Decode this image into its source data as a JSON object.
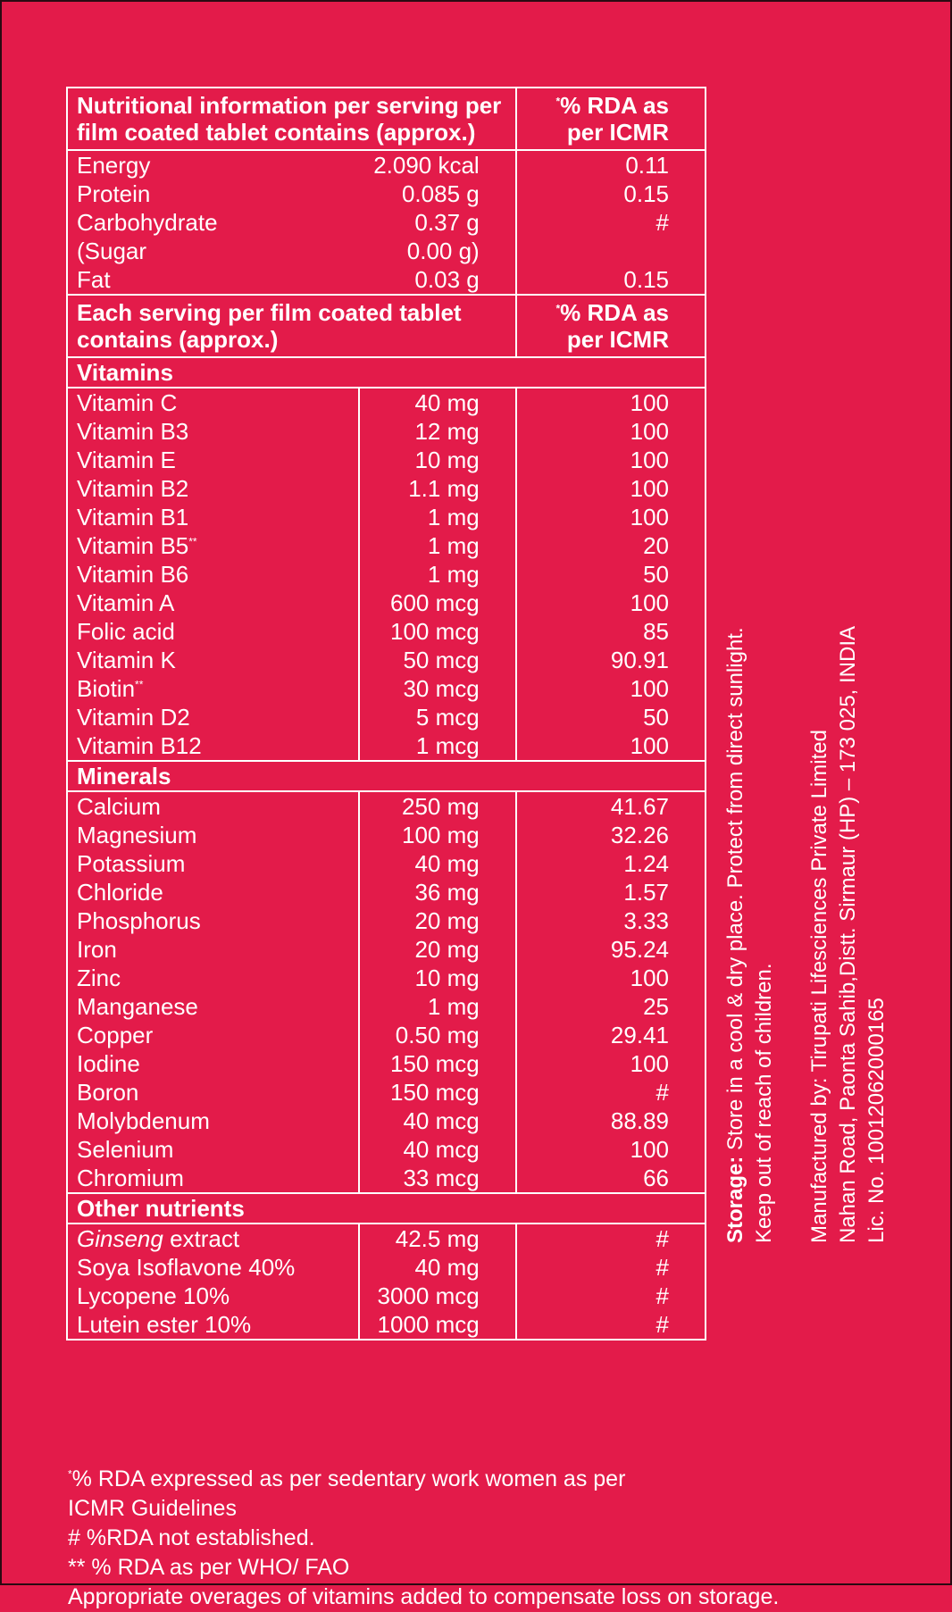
{
  "header1": {
    "left": "Nutritional information per serving per film coated tablet contains (approx.)",
    "right": "% RDA as per ICMR",
    "star": "*"
  },
  "energy_rows": [
    {
      "name": "Energy",
      "qty": "2.090 kcal",
      "rda": "0.11"
    },
    {
      "name": "Protein",
      "qty": "0.085 g",
      "rda": "0.15"
    },
    {
      "name": "Carbohydrate",
      "qty": "0.37 g",
      "rda": "#"
    },
    {
      "name": "(Sugar",
      "qty": "0.00 g)",
      "rda": ""
    },
    {
      "name": "Fat",
      "qty": "0.03 g",
      "rda": "0.15"
    }
  ],
  "header2": {
    "left": "Each serving per film coated tablet contains (approx.)",
    "right": "% RDA as per ICMR",
    "star": "*"
  },
  "vitamins_title": "Vitamins",
  "vitamins": [
    {
      "name": "Vitamin C",
      "sup": "",
      "qty": "40 mg",
      "rda": "100"
    },
    {
      "name": "Vitamin B3",
      "sup": "",
      "qty": "12 mg",
      "rda": "100"
    },
    {
      "name": "Vitamin E",
      "sup": "",
      "qty": "10 mg",
      "rda": "100"
    },
    {
      "name": "Vitamin B2",
      "sup": "",
      "qty": "1.1 mg",
      "rda": "100"
    },
    {
      "name": "Vitamin B1",
      "sup": "",
      "qty": "1 mg",
      "rda": "100"
    },
    {
      "name": "Vitamin B5",
      "sup": "**",
      "qty": "1 mg",
      "rda": "20"
    },
    {
      "name": "Vitamin B6",
      "sup": "",
      "qty": "1 mg",
      "rda": "50"
    },
    {
      "name": "Vitamin A",
      "sup": "",
      "qty": "600 mcg",
      "rda": "100"
    },
    {
      "name": "Folic acid",
      "sup": "",
      "qty": "100 mcg",
      "rda": "85"
    },
    {
      "name": "Vitamin K",
      "sup": "",
      "qty": "50 mcg",
      "rda": "90.91"
    },
    {
      "name": "Biotin",
      "sup": "**",
      "qty": "30 mcg",
      "rda": "100"
    },
    {
      "name": "Vitamin D2",
      "sup": "",
      "qty": "5 mcg",
      "rda": "50"
    },
    {
      "name": "Vitamin B12",
      "sup": "",
      "qty": "1 mcg",
      "rda": "100"
    }
  ],
  "minerals_title": "Minerals",
  "minerals": [
    {
      "name": "Calcium",
      "qty": "250 mg",
      "rda": "41.67"
    },
    {
      "name": "Magnesium",
      "qty": "100 mg",
      "rda": "32.26"
    },
    {
      "name": "Potassium",
      "qty": "40 mg",
      "rda": "1.24"
    },
    {
      "name": "Chloride",
      "qty": "36 mg",
      "rda": "1.57"
    },
    {
      "name": "Phosphorus",
      "qty": "20 mg",
      "rda": "3.33"
    },
    {
      "name": "Iron",
      "qty": "20 mg",
      "rda": "95.24"
    },
    {
      "name": "Zinc",
      "qty": "10 mg",
      "rda": "100"
    },
    {
      "name": "Manganese",
      "qty": "1 mg",
      "rda": "25"
    },
    {
      "name": "Copper",
      "qty": "0.50 mg",
      "rda": "29.41"
    },
    {
      "name": "Iodine",
      "qty": "150 mcg",
      "rda": "100"
    },
    {
      "name": "Boron",
      "qty": "150 mcg",
      "rda": "#"
    },
    {
      "name": "Molybdenum",
      "qty": "40 mcg",
      "rda": "88.89"
    },
    {
      "name": "Selenium",
      "qty": "40 mcg",
      "rda": "100"
    },
    {
      "name": "Chromium",
      "qty": "33 mcg",
      "rda": "66"
    }
  ],
  "other_title": "Other nutrients",
  "other": [
    {
      "name_italic": "Ginseng",
      "name": " extract",
      "qty": "42.5 mg",
      "rda": "#"
    },
    {
      "name_italic": "",
      "name": "Soya Isoflavone 40%",
      "qty": "40 mg",
      "rda": "#"
    },
    {
      "name_italic": "",
      "name": "Lycopene 10%",
      "qty": "3000 mcg",
      "rda": "#"
    },
    {
      "name_italic": "",
      "name": "Lutein ester 10%",
      "qty": "1000 mcg",
      "rda": "#"
    }
  ],
  "notes": {
    "star": "*",
    "line1": "% RDA expressed as per sedentary work women as per",
    "line2": "ICMR Guidelines",
    "line3": "# %RDA not established.",
    "line4": "** % RDA as per WHO/ FAO",
    "line5": "Appropriate overages of vitamins added to compensate loss on storage."
  },
  "storage": {
    "label": "Storage:",
    "line1": "  Store in a cool & dry place. Protect from direct sunlight.",
    "line2": "Keep out of reach of children."
  },
  "manufacturer": {
    "line1": "Manufactured by: Tirupati Lifesciences Private Limited",
    "line2": "Nahan Road, Paonta Sahib,Distt. Sirmaur (HP) – 173 025, INDIA",
    "line3": "Lic. No. 10012062000165"
  }
}
